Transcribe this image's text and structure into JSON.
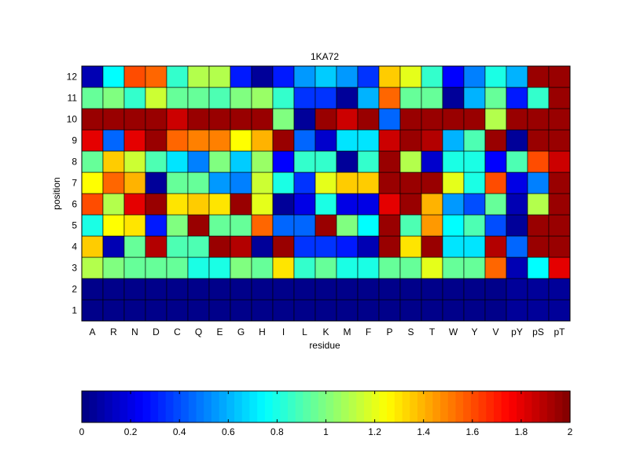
{
  "chart_data": {
    "type": "heatmap",
    "title": "1KA72",
    "xlabel": "residue",
    "ylabel": "position",
    "x_categories": [
      "A",
      "R",
      "N",
      "D",
      "C",
      "Q",
      "E",
      "G",
      "H",
      "I",
      "L",
      "K",
      "M",
      "F",
      "P",
      "S",
      "T",
      "W",
      "Y",
      "V",
      "pY",
      "pS",
      "pT"
    ],
    "y_categories": [
      "1",
      "2",
      "3",
      "4",
      "5",
      "6",
      "7",
      "8",
      "9",
      "10",
      "11",
      "12"
    ],
    "colormap": "jet",
    "clim": [
      0,
      2
    ],
    "grid": true,
    "values": [
      [
        0.02,
        0.02,
        0.02,
        0.02,
        0.02,
        0.02,
        0.02,
        0.02,
        0.02,
        0.02,
        0.02,
        0.02,
        0.02,
        0.02,
        0.02,
        0.02,
        0.02,
        0.02,
        0.02,
        0.02,
        0.05,
        0.05,
        0.05
      ],
      [
        0.02,
        0.02,
        0.02,
        0.02,
        0.02,
        0.02,
        0.02,
        0.02,
        0.02,
        0.02,
        0.02,
        0.02,
        0.02,
        0.02,
        0.02,
        0.02,
        0.02,
        0.02,
        0.02,
        0.02,
        0.05,
        0.05,
        0.05
      ],
      [
        1.1,
        1.0,
        0.95,
        0.95,
        0.95,
        0.8,
        0.8,
        1.0,
        0.95,
        1.3,
        0.85,
        0.95,
        0.8,
        0.8,
        0.95,
        0.95,
        1.2,
        0.95,
        0.95,
        1.55,
        0.1,
        0.75,
        1.8
      ],
      [
        1.35,
        0.1,
        0.95,
        1.9,
        0.9,
        0.9,
        1.95,
        1.9,
        0.05,
        1.95,
        0.35,
        0.35,
        0.3,
        0.1,
        1.95,
        1.3,
        1.95,
        0.7,
        0.7,
        1.9,
        0.45,
        1.95,
        1.95
      ],
      [
        0.8,
        1.25,
        1.3,
        0.3,
        1.0,
        1.95,
        0.95,
        0.95,
        1.55,
        0.45,
        0.45,
        1.95,
        1.0,
        0.75,
        1.95,
        0.9,
        1.45,
        0.75,
        0.9,
        0.4,
        0.05,
        1.95,
        1.95
      ],
      [
        1.6,
        1.1,
        1.8,
        1.95,
        1.3,
        1.35,
        1.3,
        1.95,
        1.2,
        0.05,
        0.2,
        0.8,
        0.2,
        0.2,
        1.8,
        1.95,
        1.4,
        0.55,
        0.4,
        0.95,
        0.1,
        1.1,
        1.95
      ],
      [
        1.25,
        1.55,
        1.4,
        0.05,
        0.95,
        0.95,
        0.55,
        0.5,
        1.15,
        0.8,
        0.35,
        1.2,
        1.35,
        1.35,
        1.95,
        1.95,
        1.95,
        1.2,
        0.8,
        1.6,
        0.2,
        0.5,
        1.95
      ],
      [
        0.95,
        1.35,
        1.15,
        0.9,
        0.7,
        0.5,
        1.0,
        0.65,
        1.05,
        0.25,
        0.85,
        0.85,
        0.05,
        0.85,
        1.95,
        1.1,
        0.15,
        0.8,
        0.8,
        0.25,
        0.9,
        1.6,
        1.85
      ],
      [
        1.8,
        0.45,
        1.8,
        1.95,
        1.55,
        1.5,
        1.5,
        1.25,
        1.4,
        1.95,
        0.45,
        0.15,
        0.7,
        0.7,
        1.85,
        1.95,
        1.9,
        0.6,
        0.9,
        1.95,
        0.05,
        1.95,
        1.95
      ],
      [
        1.95,
        1.95,
        1.95,
        1.95,
        1.85,
        1.95,
        1.95,
        1.95,
        1.95,
        1.0,
        0.05,
        1.95,
        1.85,
        1.95,
        0.45,
        1.95,
        1.95,
        1.95,
        1.95,
        1.1,
        1.95,
        1.95,
        1.95
      ],
      [
        0.95,
        1.0,
        0.85,
        1.15,
        0.95,
        0.95,
        0.9,
        1.0,
        1.05,
        0.85,
        0.35,
        0.35,
        0.05,
        0.6,
        1.55,
        0.95,
        0.95,
        0.05,
        0.6,
        0.95,
        0.3,
        0.85,
        1.95
      ],
      [
        0.1,
        0.75,
        1.6,
        1.55,
        0.85,
        1.1,
        1.1,
        0.3,
        0.05,
        0.3,
        0.55,
        0.65,
        0.55,
        0.35,
        1.35,
        1.2,
        0.85,
        0.25,
        0.5,
        0.8,
        0.6,
        1.95,
        1.95
      ]
    ],
    "colorbar": {
      "ticks": [
        "0",
        "0.2",
        "0.4",
        "0.6",
        "0.8",
        "1",
        "1.2",
        "1.4",
        "1.6",
        "1.8",
        "2"
      ],
      "range": [
        0,
        2
      ],
      "orientation": "horizontal",
      "placement": "bottom"
    }
  }
}
